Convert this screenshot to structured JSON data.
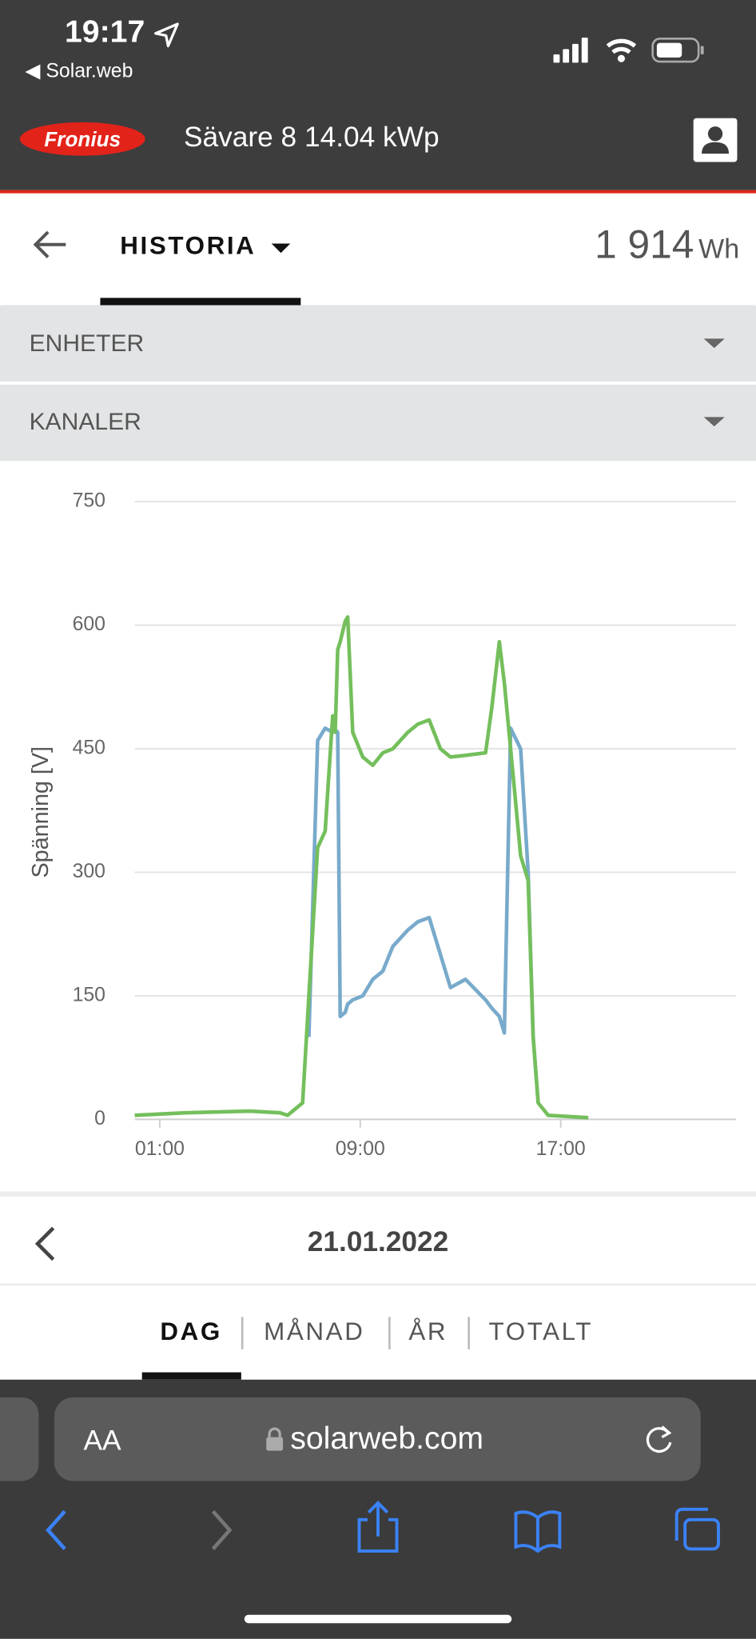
{
  "status_bar": {
    "time": "19:17",
    "back_app": "Solar.web"
  },
  "header": {
    "logo": "Fronius",
    "title": "Sävare 8 14.04 kWp"
  },
  "tab": {
    "label": "HISTORIA",
    "total_value": "1 914",
    "total_unit": "Wh"
  },
  "filters": [
    "ENHETER",
    "KANALER"
  ],
  "chart_data": {
    "type": "line",
    "y_label": "Spänning [V]",
    "x": [
      0,
      2,
      4.6,
      5.8,
      6.1,
      6.7,
      6.95,
      7.3,
      7.6,
      7.9,
      8.0,
      8.1,
      8.2,
      8.4,
      8.5,
      8.7,
      9.1,
      9.5,
      9.9,
      10.3,
      10.9,
      11.3,
      11.75,
      12.2,
      12.6,
      13.2,
      14.0,
      14.25,
      14.55,
      14.75,
      15.0,
      15.4,
      15.7,
      15.9,
      16.1,
      16.5,
      18.1
    ],
    "series": [
      {
        "color": "#74bf5c",
        "values": [
          5,
          8,
          10,
          8,
          5,
          20,
          150,
          330,
          350,
          490,
          470,
          570,
          580,
          605,
          610,
          470,
          440,
          430,
          445,
          450,
          470,
          480,
          485,
          450,
          440,
          442,
          445,
          500,
          580,
          530,
          450,
          320,
          290,
          100,
          20,
          5,
          2
        ]
      },
      {
        "color": "#78aacb",
        "values": [
          null,
          null,
          null,
          null,
          null,
          null,
          100,
          460,
          475,
          470,
          473,
          470,
          125,
          130,
          140,
          145,
          150,
          170,
          180,
          210,
          230,
          240,
          245,
          200,
          160,
          170,
          145,
          135,
          125,
          105,
          475,
          450,
          300,
          100,
          20,
          null,
          null
        ]
      }
    ],
    "xlim": [
      0,
      24
    ],
    "xticks": [
      {
        "value": 1,
        "label": "01:00"
      },
      {
        "value": 9,
        "label": "09:00"
      },
      {
        "value": 17,
        "label": "17:00"
      }
    ],
    "ylim": [
      0,
      750
    ],
    "yticks": [
      0,
      150,
      300,
      450,
      600,
      750
    ],
    "grid": true
  },
  "date": "21.01.2022",
  "periods": [
    "DAG",
    "MÅNAD",
    "ÅR",
    "TOTALT"
  ],
  "browser": {
    "text_size": "AA",
    "url": "solarweb.com"
  }
}
